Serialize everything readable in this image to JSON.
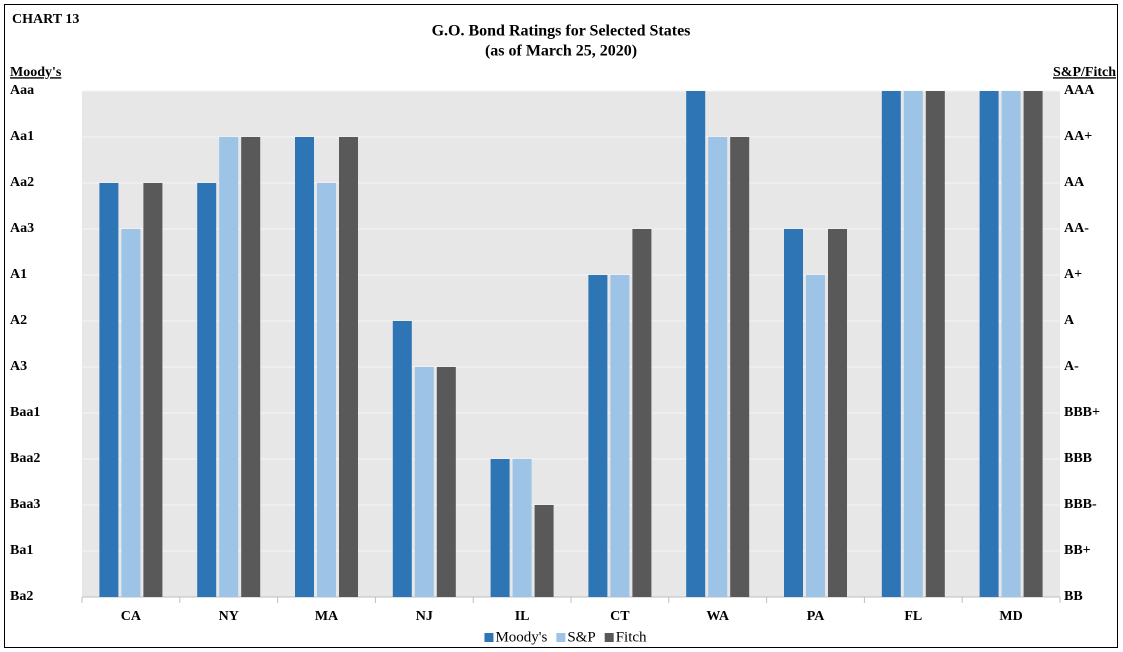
{
  "chart_data": {
    "type": "bar",
    "chart_label": "CHART 13",
    "title": "G.O. Bond Ratings for Selected States",
    "subtitle": "(as of March 25, 2020)",
    "y_label": "Moody's",
    "y2_label": "S&P/Fitch",
    "categories": [
      "CA",
      "NY",
      "MA",
      "NJ",
      "IL",
      "CT",
      "WA",
      "PA",
      "FL",
      "MD"
    ],
    "series": [
      {
        "name": "Moody's",
        "color": "#2e75b6",
        "values": [
          9,
          9,
          10,
          6,
          3,
          7,
          11,
          8,
          11,
          11
        ]
      },
      {
        "name": "S&P",
        "color": "#9dc3e6",
        "axis": "y2",
        "values": [
          8,
          10,
          9,
          5,
          3,
          7,
          10,
          7,
          11,
          11
        ]
      },
      {
        "name": "Fitch",
        "color": "#595959",
        "axis": "y2",
        "values": [
          9,
          10,
          10,
          5,
          2,
          8,
          10,
          8,
          11,
          11
        ]
      }
    ],
    "ylim": [
      0,
      11
    ],
    "yticks": [
      {
        "value": 0,
        "label": "Ba2"
      },
      {
        "value": 1,
        "label": "Ba1"
      },
      {
        "value": 2,
        "label": "Baa3"
      },
      {
        "value": 3,
        "label": "Baa2"
      },
      {
        "value": 4,
        "label": "Baa1"
      },
      {
        "value": 5,
        "label": "A3"
      },
      {
        "value": 6,
        "label": "A2"
      },
      {
        "value": 7,
        "label": "A1"
      },
      {
        "value": 8,
        "label": "Aa3"
      },
      {
        "value": 9,
        "label": "Aa2"
      },
      {
        "value": 10,
        "label": "Aa1"
      },
      {
        "value": 11,
        "label": "Aaa"
      }
    ],
    "y2lim": [
      0,
      11
    ],
    "y2ticks": [
      {
        "value": 0,
        "label": "BB"
      },
      {
        "value": 1,
        "label": "BB+"
      },
      {
        "value": 2,
        "label": "BBB-"
      },
      {
        "value": 3,
        "label": "BBB"
      },
      {
        "value": 4,
        "label": "BBB+"
      },
      {
        "value": 5,
        "label": "A-"
      },
      {
        "value": 6,
        "label": "A"
      },
      {
        "value": 7,
        "label": "A+"
      },
      {
        "value": 8,
        "label": "AA-"
      },
      {
        "value": 9,
        "label": "AA"
      },
      {
        "value": 10,
        "label": "AA+"
      },
      {
        "value": 11,
        "label": "AAA"
      }
    ],
    "grid": true,
    "legend": "bottom"
  }
}
